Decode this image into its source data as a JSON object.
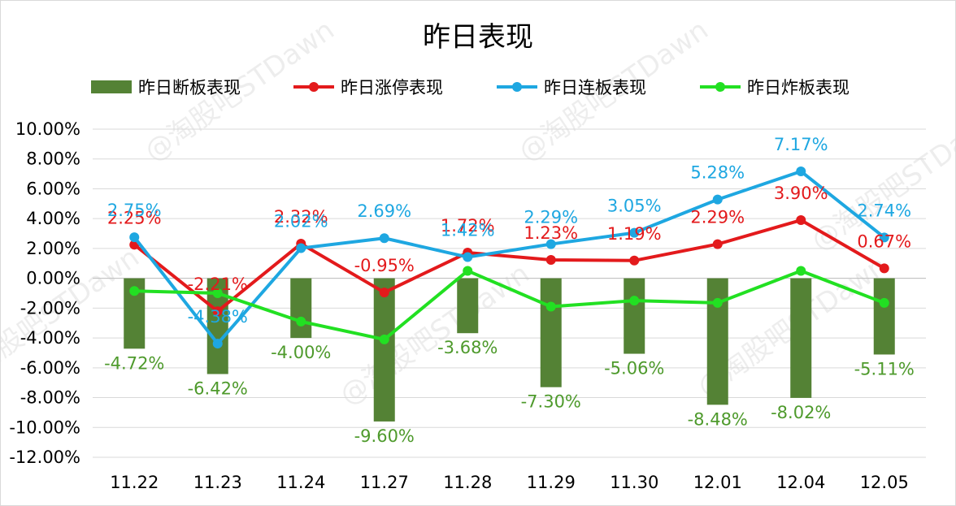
{
  "chart_data": {
    "type": "bar+line",
    "title": "昨日表现",
    "categories": [
      "11.22",
      "11.23",
      "11.24",
      "11.27",
      "11.28",
      "11.29",
      "11.30",
      "12.01",
      "12.04",
      "12.05"
    ],
    "ylim": [
      -12,
      10
    ],
    "ytick_step": 2,
    "ytick_format": "percent-2dp",
    "grid": true,
    "legend_position": "top",
    "series": [
      {
        "name": "昨日断板表现",
        "kind": "bar",
        "color": "#548235",
        "values": [
          -4.72,
          -6.42,
          -4.0,
          -9.6,
          -3.68,
          -7.3,
          -5.06,
          -8.48,
          -8.02,
          -5.11
        ],
        "show_labels": true,
        "label_color": "#4e9a2c"
      },
      {
        "name": "昨日涨停表现",
        "kind": "line",
        "color": "#e31a1c",
        "values": [
          2.25,
          -2.21,
          2.32,
          -0.95,
          1.72,
          1.23,
          1.19,
          2.29,
          3.9,
          0.67
        ],
        "show_labels": true,
        "label_color": "#e31a1c"
      },
      {
        "name": "昨日连板表现",
        "kind": "line",
        "color": "#1ea7e1",
        "values": [
          2.75,
          -4.38,
          2.02,
          2.69,
          1.42,
          2.29,
          3.05,
          5.28,
          7.17,
          2.74
        ],
        "show_labels": true,
        "label_color": "#1ea7e1"
      },
      {
        "name": "昨日炸板表现",
        "kind": "line",
        "color": "#22e022",
        "values": [
          -0.85,
          -1.0,
          -2.9,
          -4.1,
          0.5,
          -1.9,
          -1.5,
          -1.65,
          0.5,
          -1.65
        ],
        "show_labels": false
      }
    ]
  },
  "watermark": "@淘股吧STDawn"
}
